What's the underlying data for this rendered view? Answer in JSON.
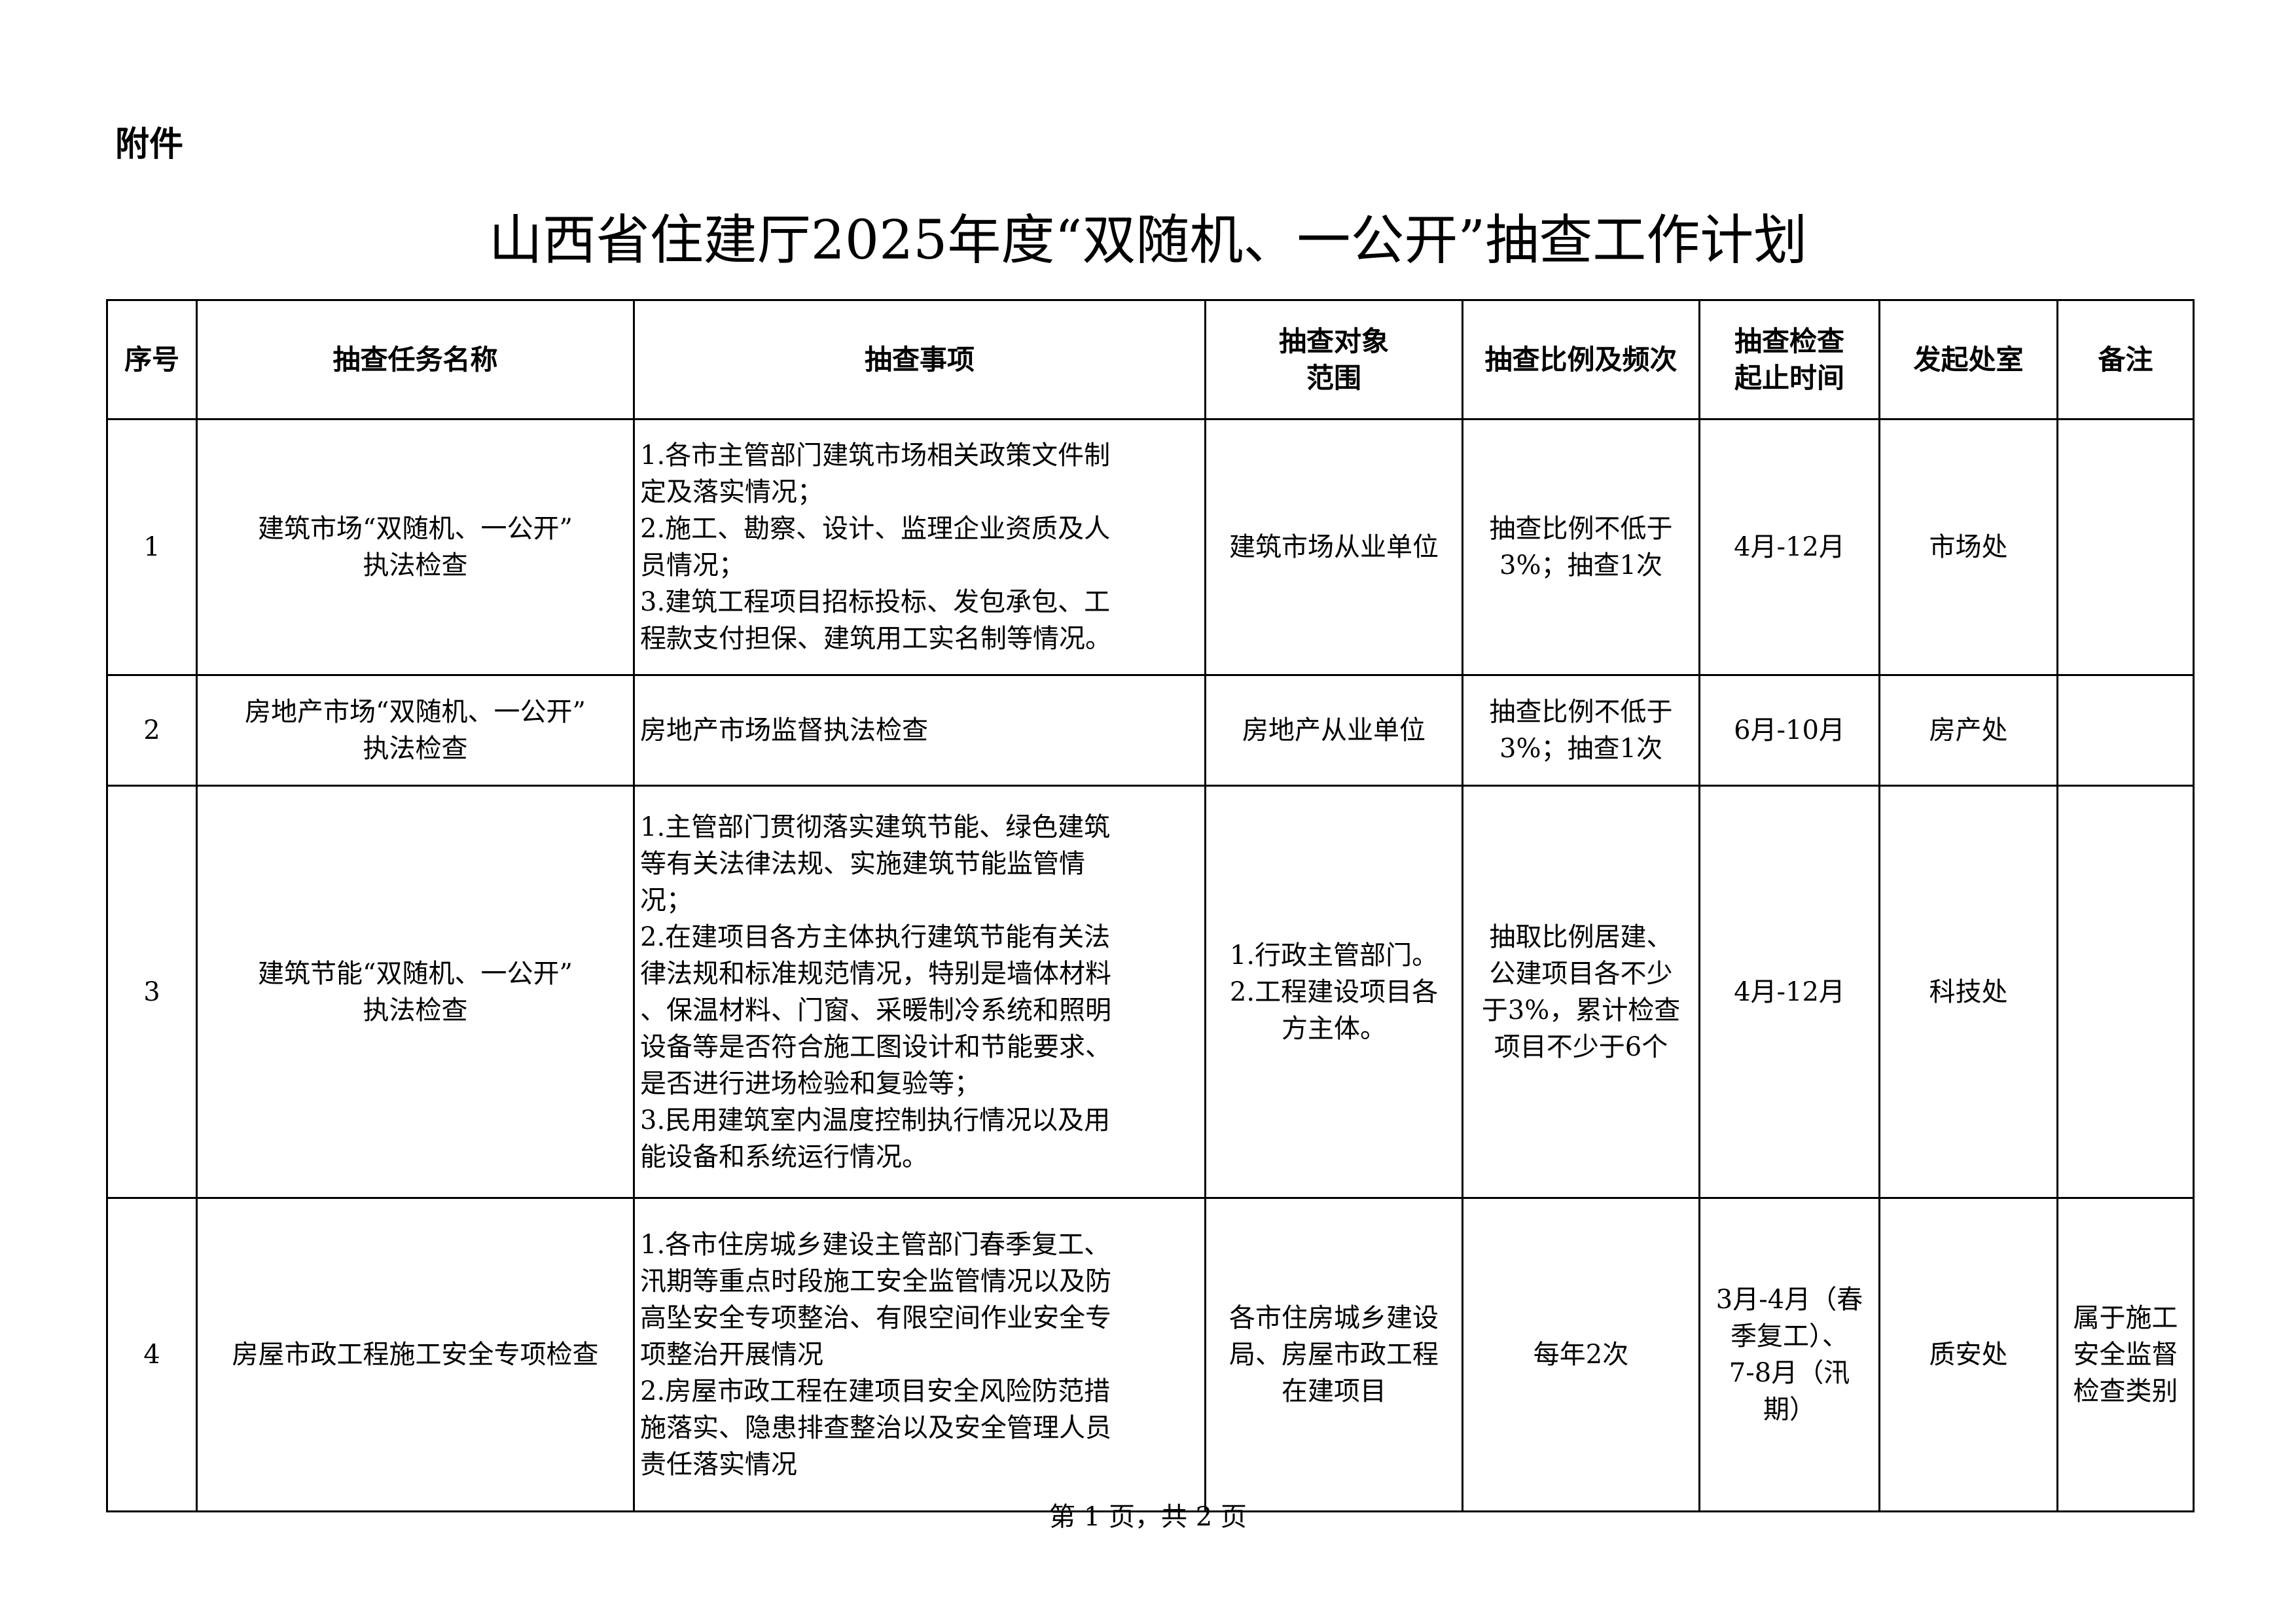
{
  "attachment_label": "附件",
  "title": "山西省住建厅2025年度“双随机、一公开”抽查工作计划",
  "table": {
    "headers": [
      "序号",
      "抽查任务名称",
      "抽查事项",
      "抽查对象\n范围",
      "抽查比例及频次",
      "抽查检查\n起止时间",
      "发起处室",
      "备注"
    ],
    "rows": [
      {
        "no": "1",
        "task": "建筑市场“双随机、一公开”\n执法检查",
        "items": "1.各市主管部门建筑市场相关政策文件制\n定及落实情况；\n2.施工、勘察、设计、监理企业资质及人\n员情况；\n3.建筑工程项目招标投标、发包承包、工\n程款支付担保、建筑用工实名制等情况。",
        "scope": "建筑市场从业单位",
        "ratio": "抽查比例不低于\n3%；抽查1次",
        "period": "4月-12月",
        "office": "市场处",
        "remark": ""
      },
      {
        "no": "2",
        "task": "房地产市场“双随机、一公开”\n执法检查",
        "items": "房地产市场监督执法检查",
        "scope": "房地产从业单位",
        "ratio": "抽查比例不低于\n3%；抽查1次",
        "period": "6月-10月",
        "office": "房产处",
        "remark": ""
      },
      {
        "no": "3",
        "task": "建筑节能“双随机、一公开”\n执法检查",
        "items": "1.主管部门贯彻落实建筑节能、绿色建筑\n等有关法律法规、实施建筑节能监管情\n况；\n2.在建项目各方主体执行建筑节能有关法\n律法规和标准规范情况，特别是墙体材料\n、保温材料、门窗、采暖制冷系统和照明\n设备等是否符合施工图设计和节能要求、\n是否进行进场检验和复验等；\n3.民用建筑室内温度控制执行情况以及用\n能设备和系统运行情况。",
        "scope": "1.行政主管部门。\n2.工程建设项目各\n方主体。",
        "ratio": "抽取比例居建、\n公建项目各不少\n于3%，累计检查\n项目不少于6个",
        "period": "4月-12月",
        "office": "科技处",
        "remark": ""
      },
      {
        "no": "4",
        "task": "房屋市政工程施工安全专项检查",
        "items": "1.各市住房城乡建设主管部门春季复工、\n汛期等重点时段施工安全监管情况以及防\n高坠安全专项整治、有限空间作业安全专\n项整治开展情况\n2.房屋市政工程在建项目安全风险防范措\n施落实、隐患排查整治以及安全管理人员\n责任落实情况",
        "scope": "各市住房城乡建设\n局、房屋市政工程\n在建项目",
        "ratio": "每年2次",
        "period": "3月-4月（春\n季复工）、\n7-8月（汛\n期）",
        "office": "质安处",
        "remark": "属于施工\n安全监督\n检查类别"
      }
    ]
  },
  "footer": "第 1 页，共 2 页"
}
